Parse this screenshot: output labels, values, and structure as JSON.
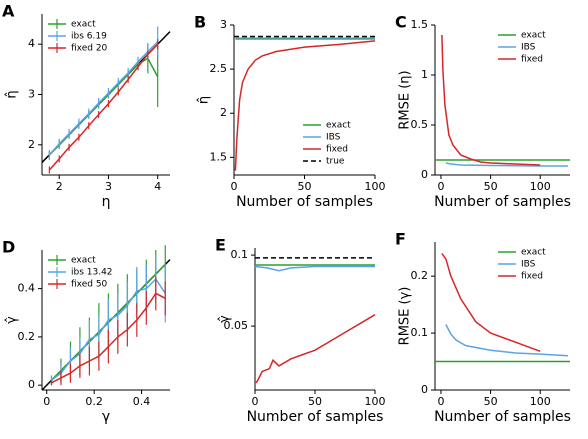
{
  "chart_data": [
    {
      "type": "line",
      "panel_label": "A",
      "xlabel": "η",
      "ylabel": "η̂",
      "xlim": [
        1.65,
        4.25
      ],
      "ylim": [
        1.4,
        4.6
      ],
      "xticks": [
        2,
        3,
        4
      ],
      "yticks": [
        2,
        3,
        4
      ],
      "legend": "upper left",
      "identity_line": true,
      "series": [
        {
          "name": "exact",
          "color": "#2ca02c",
          "x": [
            1.8,
            2.0,
            2.2,
            2.4,
            2.6,
            2.8,
            3.0,
            3.2,
            3.4,
            3.6,
            3.8,
            4.0
          ],
          "values": [
            1.8,
            2.0,
            2.2,
            2.4,
            2.6,
            2.8,
            3.0,
            3.2,
            3.4,
            3.6,
            3.72,
            3.35
          ],
          "errors": [
            0.08,
            0.08,
            0.08,
            0.08,
            0.08,
            0.08,
            0.08,
            0.08,
            0.08,
            0.1,
            0.3,
            0.6
          ]
        },
        {
          "name": "ibs 6.19",
          "color": "#5ba3e6",
          "x": [
            1.8,
            2.0,
            2.2,
            2.4,
            2.6,
            2.8,
            3.0,
            3.2,
            3.4,
            3.6,
            3.8,
            4.0
          ],
          "values": [
            1.8,
            2.02,
            2.22,
            2.42,
            2.62,
            2.83,
            3.03,
            3.23,
            3.43,
            3.65,
            3.85,
            4.05
          ],
          "errors": [
            0.1,
            0.1,
            0.1,
            0.1,
            0.1,
            0.1,
            0.1,
            0.1,
            0.1,
            0.1,
            0.15,
            0.3
          ]
        },
        {
          "name": "fixed 20",
          "color": "#d62728",
          "x": [
            1.8,
            2.0,
            2.2,
            2.4,
            2.6,
            2.8,
            3.0,
            3.2,
            3.4,
            3.6,
            3.8,
            4.0
          ],
          "values": [
            1.5,
            1.72,
            1.95,
            2.15,
            2.38,
            2.6,
            2.82,
            3.05,
            3.3,
            3.55,
            3.8,
            4.0
          ],
          "errors": [
            0.07,
            0.07,
            0.07,
            0.07,
            0.07,
            0.07,
            0.07,
            0.07,
            0.07,
            0.07,
            0.07,
            0.1
          ]
        }
      ]
    },
    {
      "type": "line",
      "panel_label": "B",
      "xlabel": "Number of samples",
      "ylabel": "η̂",
      "xlim": [
        0,
        100
      ],
      "ylim": [
        1.3,
        3.0
      ],
      "xticks": [
        0,
        50,
        100
      ],
      "yticks": [
        1.5,
        2,
        2.5,
        3
      ],
      "legend": "lower right",
      "series": [
        {
          "name": "exact",
          "color": "#2ca02c",
          "x": [
            1,
            100
          ],
          "values": [
            2.85,
            2.85
          ]
        },
        {
          "name": "IBS",
          "color": "#5ba3e6",
          "x": [
            1,
            100
          ],
          "values": [
            2.84,
            2.84
          ]
        },
        {
          "name": "fixed",
          "color": "#d62728",
          "x": [
            1,
            2,
            4,
            6,
            10,
            15,
            20,
            30,
            50,
            75,
            100
          ],
          "values": [
            1.35,
            1.7,
            2.15,
            2.35,
            2.5,
            2.6,
            2.65,
            2.7,
            2.75,
            2.78,
            2.82
          ]
        },
        {
          "name": "true",
          "color": "#000000",
          "dashed": true,
          "x": [
            0,
            100
          ],
          "values": [
            2.87,
            2.87
          ]
        }
      ]
    },
    {
      "type": "line",
      "panel_label": "C",
      "xlabel": "Number of samples",
      "ylabel": "RMSE (η)",
      "xlim": [
        -6,
        130
      ],
      "ylim": [
        0,
        1.5
      ],
      "xticks": [
        0,
        50,
        100
      ],
      "yticks": [
        0,
        0.5,
        1,
        1.5
      ],
      "legend": "upper right",
      "series": [
        {
          "name": "exact",
          "color": "#2ca02c",
          "x": [
            -6,
            130
          ],
          "values": [
            0.15,
            0.15
          ]
        },
        {
          "name": "IBS",
          "color": "#5ba3e6",
          "x": [
            5,
            10,
            20,
            50,
            100,
            128
          ],
          "values": [
            0.12,
            0.11,
            0.1,
            0.095,
            0.09,
            0.09
          ]
        },
        {
          "name": "fixed",
          "color": "#d62728",
          "x": [
            1,
            2,
            4,
            6,
            8,
            12,
            16,
            20,
            30,
            40,
            50,
            75,
            100
          ],
          "values": [
            1.4,
            1.05,
            0.7,
            0.55,
            0.4,
            0.3,
            0.25,
            0.2,
            0.16,
            0.13,
            0.12,
            0.11,
            0.1
          ]
        }
      ]
    },
    {
      "type": "line",
      "panel_label": "D",
      "xlabel": "γ",
      "ylabel": "γ̂",
      "xlim": [
        -0.02,
        0.52
      ],
      "ylim": [
        -0.02,
        0.56
      ],
      "xticks": [
        0,
        0.2,
        0.4
      ],
      "yticks": [
        0,
        0.2,
        0.4
      ],
      "legend": "upper left",
      "identity_line": true,
      "series": [
        {
          "name": "exact",
          "color": "#2ca02c",
          "x": [
            0.02,
            0.06,
            0.1,
            0.14,
            0.18,
            0.22,
            0.26,
            0.3,
            0.34,
            0.38,
            0.42,
            0.46,
            0.5
          ],
          "values": [
            0.02,
            0.06,
            0.1,
            0.14,
            0.18,
            0.22,
            0.26,
            0.3,
            0.34,
            0.38,
            0.42,
            0.46,
            0.5
          ],
          "errors": [
            0.02,
            0.05,
            0.08,
            0.1,
            0.1,
            0.12,
            0.12,
            0.12,
            0.12,
            0.1,
            0.1,
            0.1,
            0.08
          ]
        },
        {
          "name": "ibs 13.42",
          "color": "#5ba3e6",
          "x": [
            0.02,
            0.06,
            0.1,
            0.14,
            0.18,
            0.22,
            0.26,
            0.3,
            0.34,
            0.38,
            0.42,
            0.46,
            0.5
          ],
          "values": [
            0.02,
            0.05,
            0.1,
            0.13,
            0.19,
            0.21,
            0.27,
            0.29,
            0.33,
            0.39,
            0.4,
            0.44,
            0.38
          ],
          "errors": [
            0.02,
            0.04,
            0.06,
            0.07,
            0.08,
            0.08,
            0.09,
            0.09,
            0.1,
            0.1,
            0.1,
            0.1,
            0.12
          ]
        },
        {
          "name": "fixed 50",
          "color": "#d62728",
          "x": [
            0.02,
            0.06,
            0.1,
            0.14,
            0.18,
            0.22,
            0.26,
            0.3,
            0.34,
            0.38,
            0.42,
            0.46,
            0.5
          ],
          "values": [
            0.01,
            0.03,
            0.05,
            0.08,
            0.1,
            0.12,
            0.16,
            0.2,
            0.23,
            0.27,
            0.32,
            0.38,
            0.36
          ],
          "errors": [
            0.01,
            0.03,
            0.04,
            0.05,
            0.06,
            0.06,
            0.07,
            0.07,
            0.07,
            0.07,
            0.07,
            0.07,
            0.07
          ]
        }
      ]
    },
    {
      "type": "line",
      "panel_label": "E",
      "xlabel": "Number of samples",
      "ylabel": "γ̂",
      "xlim": [
        0,
        100
      ],
      "ylim": [
        0.005,
        0.105
      ],
      "xticks": [
        0,
        50,
        100
      ],
      "yticks": [
        0.05,
        0.1
      ],
      "series": [
        {
          "name": "exact",
          "color": "#2ca02c",
          "x": [
            0,
            100
          ],
          "values": [
            0.093,
            0.093
          ]
        },
        {
          "name": "IBS",
          "color": "#5ba3e6",
          "x": [
            0,
            10,
            20,
            30,
            50,
            100
          ],
          "values": [
            0.092,
            0.091,
            0.089,
            0.091,
            0.092,
            0.092
          ]
        },
        {
          "name": "fixed",
          "color": "#d62728",
          "x": [
            1,
            3,
            6,
            9,
            12,
            15,
            20,
            30,
            40,
            50,
            60,
            70,
            80,
            90,
            100
          ],
          "values": [
            0.01,
            0.013,
            0.018,
            0.019,
            0.02,
            0.026,
            0.022,
            0.027,
            0.03,
            0.033,
            0.038,
            0.043,
            0.048,
            0.053,
            0.058
          ]
        },
        {
          "name": "true",
          "color": "#000000",
          "dashed": true,
          "x": [
            0,
            100
          ],
          "values": [
            0.098,
            0.098
          ]
        }
      ]
    },
    {
      "type": "line",
      "panel_label": "F",
      "xlabel": "Number of samples",
      "ylabel": "RMSE (γ)",
      "xlim": [
        -6,
        130
      ],
      "ylim": [
        0,
        0.26
      ],
      "xticks": [
        0,
        50,
        100
      ],
      "yticks": [
        0,
        0.1,
        0.2
      ],
      "legend": "upper right",
      "series": [
        {
          "name": "exact",
          "color": "#2ca02c",
          "x": [
            -6,
            130
          ],
          "values": [
            0.05,
            0.05
          ]
        },
        {
          "name": "IBS",
          "color": "#5ba3e6",
          "x": [
            5,
            10,
            15,
            25,
            50,
            75,
            100,
            128
          ],
          "values": [
            0.115,
            0.098,
            0.088,
            0.078,
            0.07,
            0.065,
            0.063,
            0.06
          ]
        },
        {
          "name": "fixed",
          "color": "#d62728",
          "x": [
            1,
            5,
            10,
            20,
            35,
            50,
            100
          ],
          "values": [
            0.24,
            0.23,
            0.2,
            0.16,
            0.12,
            0.1,
            0.068
          ]
        }
      ]
    }
  ]
}
